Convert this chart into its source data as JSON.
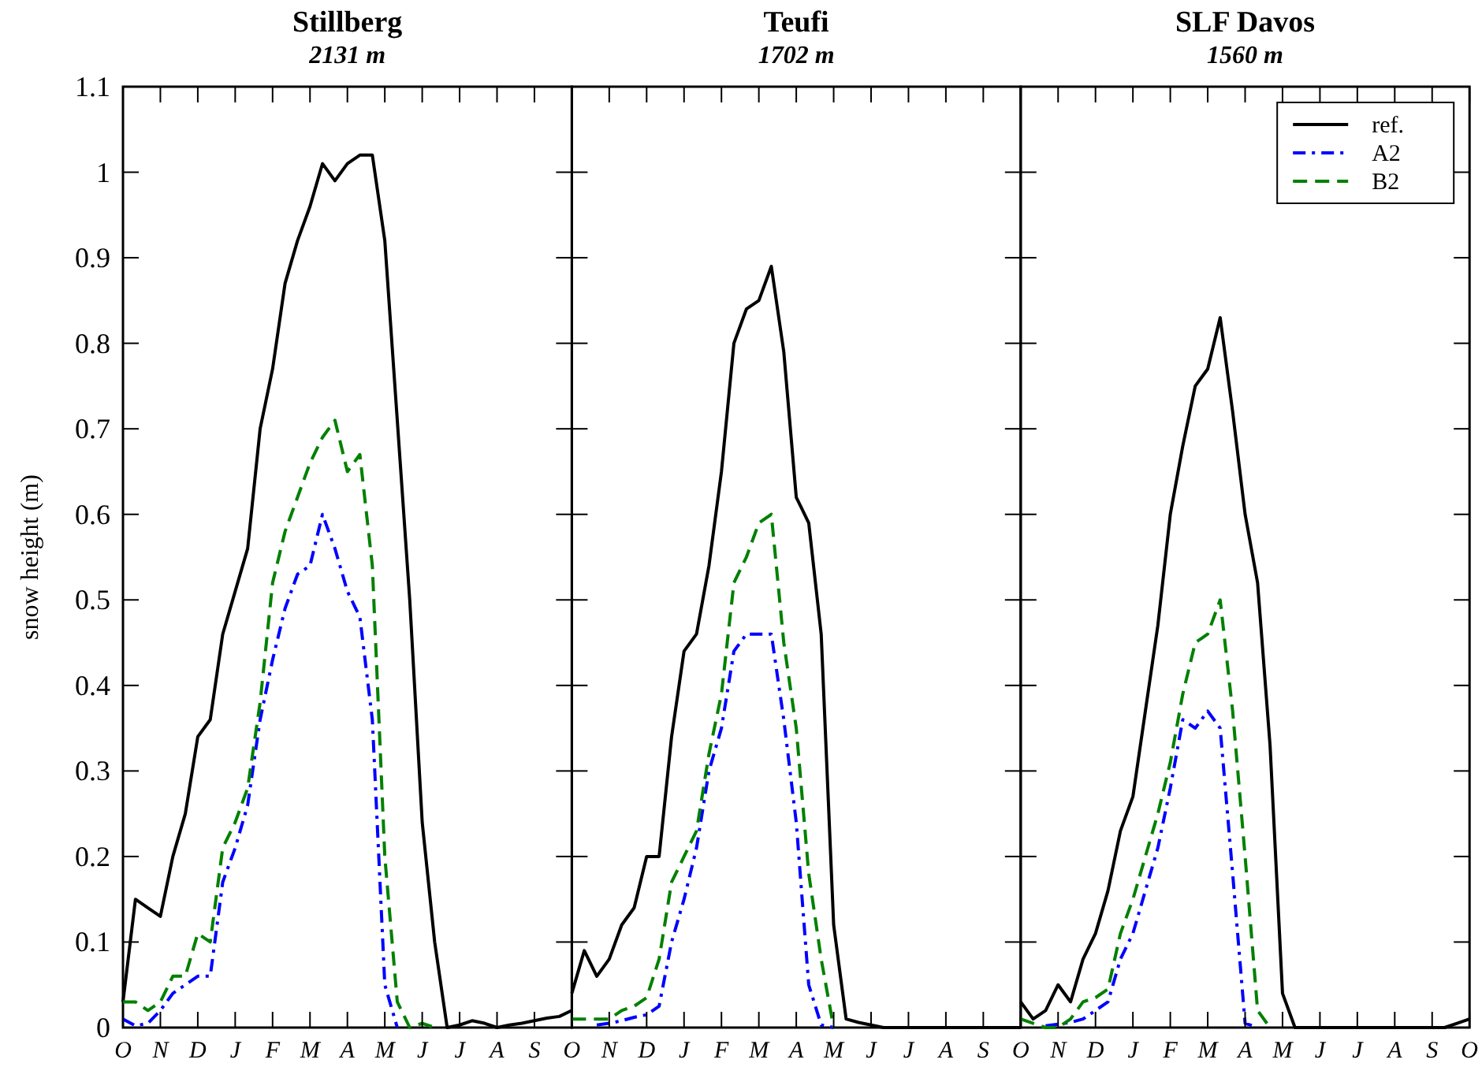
{
  "chart_data": [
    {
      "type": "line",
      "title": "Stillberg",
      "subtitle": "2131 m",
      "ylabel": "snow height (m)",
      "categories": [
        "O",
        null,
        null,
        "N",
        null,
        null,
        "D",
        null,
        null,
        "J",
        null,
        null,
        "F",
        null,
        null,
        "M",
        null,
        null,
        "A",
        null,
        null,
        "M",
        null,
        null,
        "J",
        null,
        null,
        "J",
        null,
        null,
        "A",
        null,
        null,
        "S",
        null,
        null,
        null
      ],
      "ylim": [
        0,
        1.1
      ],
      "yticks": [
        0,
        0.1,
        0.2,
        0.3,
        0.4,
        0.5,
        0.6,
        0.7,
        0.8,
        0.9,
        1,
        1.1
      ],
      "series": [
        {
          "color": "#000000",
          "line_style": "solid",
          "values": [
            0.03,
            0.15,
            0.14,
            0.13,
            0.2,
            0.25,
            0.34,
            0.36,
            0.46,
            0.51,
            0.56,
            0.7,
            0.77,
            0.87,
            0.92,
            0.96,
            1.01,
            0.99,
            1.01,
            1.02,
            1.02,
            0.92,
            0.71,
            0.5,
            0.24,
            0.1,
            0,
            0.003,
            0.008,
            0.005,
            0,
            0.003,
            0.005,
            0.008,
            0.011,
            0.013,
            0.02
          ]
        },
        {
          "color": "#0000ff",
          "line_style": "dashdot",
          "values": [
            0.01,
            0.002,
            0.005,
            0.02,
            0.04,
            0.05,
            0.06,
            0.06,
            0.17,
            0.21,
            0.26,
            0.36,
            0.43,
            0.49,
            0.53,
            0.54,
            0.6,
            0.56,
            0.51,
            0.48,
            0.36,
            0.05,
            0,
            null,
            null,
            null,
            null,
            null,
            null,
            null,
            null,
            null,
            null,
            null,
            null,
            null,
            null
          ]
        },
        {
          "color": "#008000",
          "line_style": "dashed",
          "values": [
            0.03,
            0.03,
            0.02,
            0.03,
            0.06,
            0.06,
            0.11,
            0.1,
            0.21,
            0.24,
            0.28,
            0.38,
            0.52,
            0.58,
            0.62,
            0.66,
            0.69,
            0.71,
            0.65,
            0.67,
            0.54,
            0.2,
            0.03,
            0,
            0.005,
            0,
            null,
            null,
            null,
            null,
            null,
            null,
            null,
            null,
            null,
            null,
            null
          ]
        }
      ]
    },
    {
      "type": "line",
      "title": "Teufi",
      "subtitle": "1702 m",
      "tick_labels": "x",
      "categories": [
        "O",
        null,
        null,
        "N",
        null,
        null,
        "D",
        null,
        null,
        "J",
        null,
        null,
        "F",
        null,
        null,
        "M",
        null,
        null,
        "A",
        null,
        null,
        "M",
        null,
        null,
        "J",
        null,
        null,
        "J",
        null,
        null,
        "A",
        null,
        null,
        "S",
        null,
        null,
        null
      ],
      "ylim": [
        0,
        1.1
      ],
      "yticks": [
        0,
        0.1,
        0.2,
        0.3,
        0.4,
        0.5,
        0.6,
        0.7,
        0.8,
        0.9,
        1,
        1.1
      ],
      "series": [
        {
          "color": "#000000",
          "line_style": "solid",
          "values": [
            0.04,
            0.09,
            0.06,
            0.08,
            0.12,
            0.14,
            0.2,
            0.2,
            0.34,
            0.44,
            0.46,
            0.54,
            0.65,
            0.8,
            0.84,
            0.85,
            0.89,
            0.79,
            0.62,
            0.59,
            0.46,
            0.12,
            0.01,
            0.006,
            0.003,
            0,
            0,
            0,
            0,
            0,
            0,
            0,
            0,
            0,
            0,
            0,
            0
          ]
        },
        {
          "color": "#0000ff",
          "line_style": "dashdot",
          "values": [
            null,
            null,
            0.003,
            0.005,
            0.008,
            0.012,
            0.015,
            0.025,
            0.1,
            0.15,
            0.21,
            0.3,
            0.35,
            0.44,
            0.46,
            0.46,
            0.46,
            0.36,
            0.24,
            0.05,
            0.003,
            0,
            null,
            null,
            null,
            null,
            null,
            null,
            null,
            null,
            null,
            null,
            null,
            null,
            null,
            null,
            null
          ]
        },
        {
          "color": "#008000",
          "line_style": "dashed",
          "values": [
            0.01,
            0.01,
            0.01,
            0.01,
            0.02,
            0.025,
            0.035,
            0.08,
            0.17,
            0.2,
            0.23,
            0.32,
            0.39,
            0.52,
            0.55,
            0.59,
            0.6,
            0.45,
            0.35,
            0.18,
            0.08,
            0,
            null,
            null,
            null,
            null,
            null,
            null,
            null,
            null,
            null,
            null,
            null,
            null,
            null,
            null,
            null
          ]
        }
      ]
    },
    {
      "type": "line",
      "title": "SLF Davos",
      "subtitle": "1560 m",
      "tick_labels": "x",
      "legend": "top right",
      "categories": [
        "O",
        null,
        null,
        "N",
        null,
        null,
        "D",
        null,
        null,
        "J",
        null,
        null,
        "F",
        null,
        null,
        "M",
        null,
        null,
        "A",
        null,
        null,
        "M",
        null,
        null,
        "J",
        null,
        null,
        "J",
        null,
        null,
        "A",
        null,
        null,
        "S",
        null,
        null,
        "O"
      ],
      "ylim": [
        0,
        1.1
      ],
      "yticks": [
        0,
        0.1,
        0.2,
        0.3,
        0.4,
        0.5,
        0.6,
        0.7,
        0.8,
        0.9,
        1,
        1.1
      ],
      "series": [
        {
          "name": "ref.",
          "color": "#000000",
          "line_style": "solid",
          "values": [
            0.03,
            0.01,
            0.02,
            0.05,
            0.03,
            0.08,
            0.11,
            0.16,
            0.23,
            0.27,
            0.37,
            0.47,
            0.6,
            0.68,
            0.75,
            0.77,
            0.83,
            0.72,
            0.6,
            0.52,
            0.33,
            0.04,
            0,
            0,
            0,
            0,
            0,
            0,
            0,
            0,
            0,
            0,
            0,
            0,
            0,
            0.005,
            0.01
          ]
        },
        {
          "name": "A2",
          "color": "#0000ff",
          "line_style": "dashdot",
          "values": [
            null,
            null,
            0.002,
            0.004,
            0.006,
            0.01,
            0.02,
            0.03,
            0.08,
            0.11,
            0.16,
            0.21,
            0.28,
            0.36,
            0.35,
            0.37,
            0.35,
            0.18,
            0.005,
            0,
            null,
            null,
            null,
            null,
            null,
            null,
            null,
            null,
            null,
            null,
            null,
            null,
            null,
            null,
            null,
            null,
            null
          ]
        },
        {
          "name": "B2",
          "color": "#008000",
          "line_style": "dashed",
          "values": [
            0.01,
            0.005,
            0,
            0,
            0.01,
            0.03,
            0.035,
            0.045,
            0.11,
            0.15,
            0.2,
            0.25,
            0.31,
            0.39,
            0.45,
            0.46,
            0.5,
            0.37,
            0.2,
            0.02,
            0,
            null,
            null,
            null,
            null,
            null,
            null,
            null,
            null,
            null,
            null,
            null,
            null,
            null,
            null,
            null,
            null
          ]
        }
      ]
    }
  ]
}
